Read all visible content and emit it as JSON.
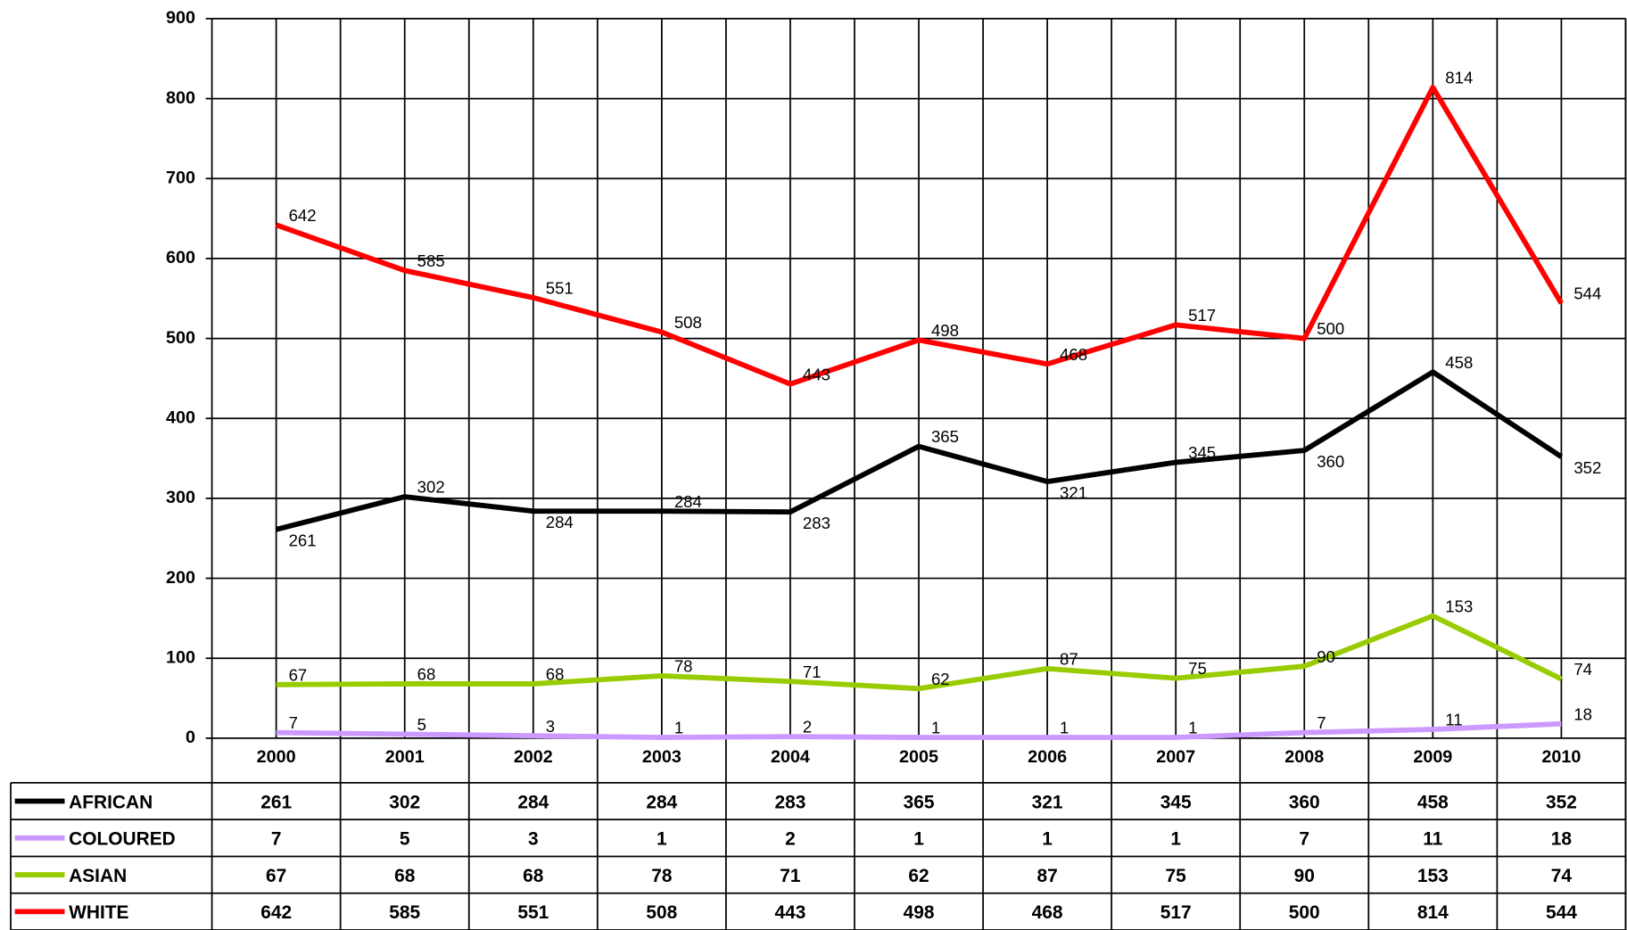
{
  "chart_data": {
    "type": "line",
    "categories": [
      "2000",
      "2001",
      "2002",
      "2003",
      "2004",
      "2005",
      "2006",
      "2007",
      "2008",
      "2009",
      "2010"
    ],
    "series": [
      {
        "name": "AFRICAN",
        "color": "#000000",
        "values": [
          261,
          302,
          284,
          284,
          283,
          365,
          321,
          345,
          360,
          458,
          352
        ]
      },
      {
        "name": "COLOURED",
        "color": "#cc99ff",
        "values": [
          7,
          5,
          3,
          1,
          2,
          1,
          1,
          1,
          7,
          11,
          18
        ]
      },
      {
        "name": "ASIAN",
        "color": "#99cc00",
        "values": [
          67,
          68,
          68,
          78,
          71,
          62,
          87,
          75,
          90,
          153,
          74
        ]
      },
      {
        "name": "WHITE",
        "color": "#ff0000",
        "values": [
          642,
          585,
          551,
          508,
          443,
          498,
          468,
          517,
          500,
          814,
          544
        ]
      }
    ],
    "ylim": [
      0,
      900
    ],
    "yticks": [
      0,
      100,
      200,
      300,
      400,
      500,
      600,
      700,
      800,
      900
    ],
    "grid": true
  }
}
